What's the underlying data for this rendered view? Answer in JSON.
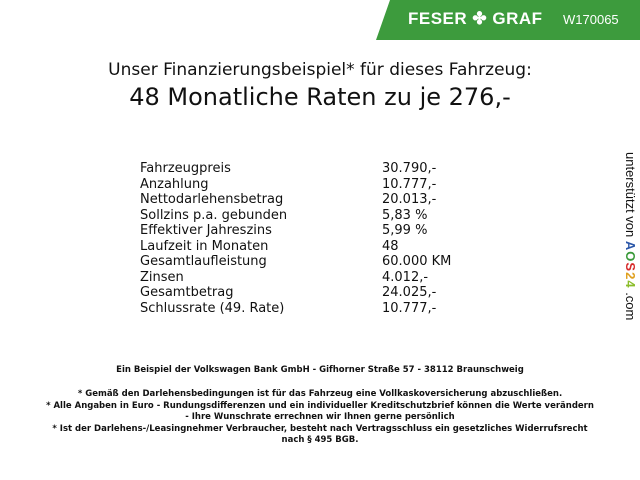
{
  "brand": {
    "logo": "FESER ✤ GRAF",
    "vehicle_code": "W170065",
    "accent": "#3d9b3d"
  },
  "title": {
    "line1": "Unser Finanzierungsbeispiel* für dieses Fahrzeug:",
    "line2": "48 Monatliche Raten zu je 276,-"
  },
  "rows": [
    {
      "label": "Fahrzeugpreis",
      "value": "30.790,-"
    },
    {
      "label": "Anzahlung",
      "value": "10.777,-"
    },
    {
      "label": "Nettodarlehensbetrag",
      "value": "20.013,-"
    },
    {
      "label": "Sollzins p.a. gebunden",
      "value": "5,83 %"
    },
    {
      "label": "Effektiver Jahreszins",
      "value": "5,99 %"
    },
    {
      "label": "Laufzeit in Monaten",
      "value": "48"
    },
    {
      "label": "Gesamtlaufleistung",
      "value": "60.000 KM"
    },
    {
      "label": "Zinsen",
      "value": "4.012,-"
    },
    {
      "label": "Gesamtbetrag",
      "value": "24.025,-"
    },
    {
      "label": "Schlussrate (49. Rate)",
      "value": "10.777,-"
    }
  ],
  "side": {
    "prefix": "unterstützt von",
    "a": "A",
    "o": "O",
    "s": "S",
    "two": "2",
    "four": "4",
    "suffix": ".com"
  },
  "footer": {
    "bank": "Ein Beispiel der Volkswagen Bank GmbH - Gifhorner Straße 57 - 38112 Braunschweig",
    "note1": "* Gemäß den Darlehensbedingungen ist für das Fahrzeug eine Vollkaskoversicherung abzuschließen.",
    "note2": "* Alle Angaben in Euro - Rundungsdifferenzen und ein individueller Kreditschutzbrief können die Werte verändern",
    "note2b": "- Ihre Wunschrate errechnen wir Ihnen gerne persönlich",
    "note3": "* Ist der Darlehens-/Leasingnehmer Verbraucher, besteht nach Vertragsschluss ein gesetzliches Widerrufsrecht",
    "note3b": "nach § 495 BGB."
  }
}
